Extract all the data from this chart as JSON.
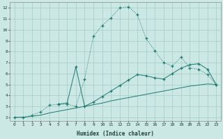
{
  "xlabel": "Humidex (Indice chaleur)",
  "xlim": [
    -0.5,
    23.5
  ],
  "ylim": [
    1.7,
    12.5
  ],
  "xticks": [
    0,
    1,
    2,
    3,
    4,
    5,
    6,
    7,
    8,
    9,
    10,
    11,
    12,
    13,
    14,
    15,
    16,
    17,
    18,
    19,
    20,
    21,
    22,
    23
  ],
  "yticks": [
    2,
    3,
    4,
    5,
    6,
    7,
    8,
    9,
    10,
    11,
    12
  ],
  "bg_color": "#cce8e5",
  "line_color": "#1a7a6e",
  "grid_color": "#aacfcc",
  "line1_x": [
    0,
    1,
    2,
    3,
    4,
    5,
    6,
    7,
    8,
    9,
    10,
    11,
    12,
    13,
    14,
    15,
    16,
    17,
    18,
    19,
    20,
    21,
    22,
    23
  ],
  "line1_y": [
    2.0,
    2.0,
    2.2,
    2.5,
    3.1,
    3.2,
    3.2,
    3.0,
    5.5,
    9.4,
    10.4,
    11.1,
    12.0,
    12.1,
    11.4,
    9.2,
    8.1,
    7.0,
    6.7,
    7.5,
    6.5,
    6.4,
    5.9,
    5.0
  ],
  "line2_x": [
    5,
    6,
    7,
    8,
    9,
    10,
    11,
    12,
    13,
    14,
    15,
    16,
    17,
    18,
    19,
    20,
    21,
    22,
    23
  ],
  "line2_y": [
    3.2,
    3.3,
    6.6,
    3.0,
    3.4,
    3.9,
    4.4,
    4.9,
    5.4,
    5.9,
    5.8,
    5.6,
    5.5,
    6.0,
    6.5,
    6.8,
    6.9,
    6.4,
    5.0
  ],
  "line3_x": [
    0,
    1,
    2,
    3,
    4,
    5,
    6,
    7,
    8,
    9,
    10,
    11,
    12,
    13,
    14,
    15,
    16,
    17,
    18,
    19,
    20,
    21,
    22,
    23
  ],
  "line3_y": [
    2.0,
    2.0,
    2.1,
    2.2,
    2.4,
    2.55,
    2.7,
    2.85,
    3.0,
    3.15,
    3.3,
    3.5,
    3.65,
    3.8,
    3.95,
    4.1,
    4.25,
    4.4,
    4.55,
    4.7,
    4.85,
    4.95,
    5.05,
    5.0
  ]
}
